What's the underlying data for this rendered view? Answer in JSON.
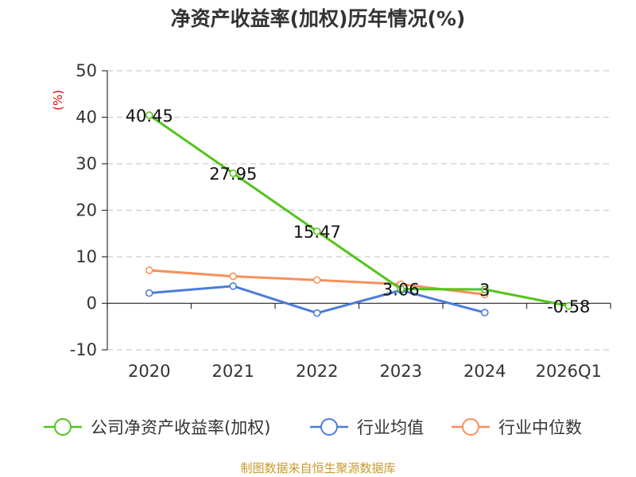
{
  "chart_data": {
    "type": "line",
    "title": "净资产收益率(加权)历年情况(%)",
    "ylabel": "(%)",
    "xlabel": "",
    "categories": [
      "2020",
      "2021",
      "2022",
      "2023",
      "2024",
      "2026Q1"
    ],
    "yticks": [
      50,
      40,
      30,
      20,
      10,
      0,
      -10
    ],
    "ylim": [
      -10,
      50
    ],
    "grid": true,
    "legend_position": "bottom",
    "series": [
      {
        "name": "公司净资产收益率(加权)",
        "color": "#52c41a",
        "values": [
          40.45,
          27.95,
          15.47,
          3.06,
          3,
          -0.58
        ],
        "data_labels": [
          "40.45",
          "27.95",
          "15.47",
          "3.06",
          "3",
          "-0.58"
        ]
      },
      {
        "name": "行业均值",
        "color": "#4a7ddb",
        "values": [
          2.2,
          3.7,
          -2.1,
          2.8,
          -2.0,
          null
        ]
      },
      {
        "name": "行业中位数",
        "color": "#f7905a",
        "values": [
          7.1,
          5.8,
          5.0,
          4.1,
          1.9,
          null
        ]
      }
    ]
  },
  "source": "制图数据来自恒生聚源数据库"
}
